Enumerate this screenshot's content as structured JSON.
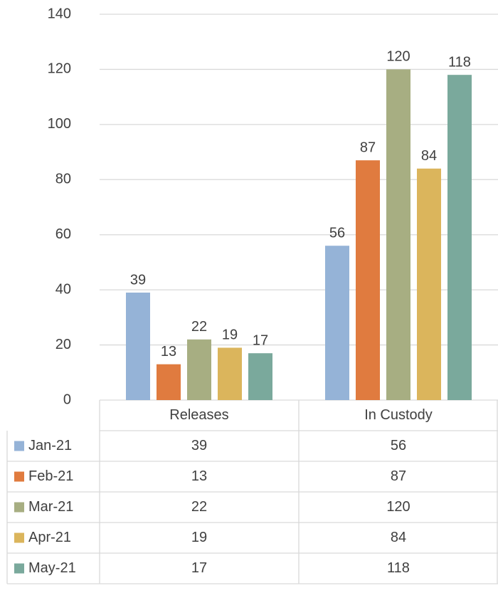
{
  "chart_data": {
    "type": "bar",
    "categories": [
      "Releases",
      "In Custody"
    ],
    "series": [
      {
        "name": "Jan-21",
        "color": "#95b3d7",
        "values": [
          39,
          56
        ]
      },
      {
        "name": "Feb-21",
        "color": "#e07b3f",
        "values": [
          13,
          87
        ]
      },
      {
        "name": "Mar-21",
        "color": "#a7ae82",
        "values": [
          22,
          120
        ]
      },
      {
        "name": "Apr-21",
        "color": "#dbb55c",
        "values": [
          19,
          84
        ]
      },
      {
        "name": "May-21",
        "color": "#7aa99c",
        "values": [
          17,
          118
        ]
      }
    ],
    "ylim": [
      0,
      140
    ],
    "yticks": [
      0,
      20,
      40,
      60,
      80,
      100,
      120,
      140
    ],
    "grid": true,
    "data_table": true
  }
}
